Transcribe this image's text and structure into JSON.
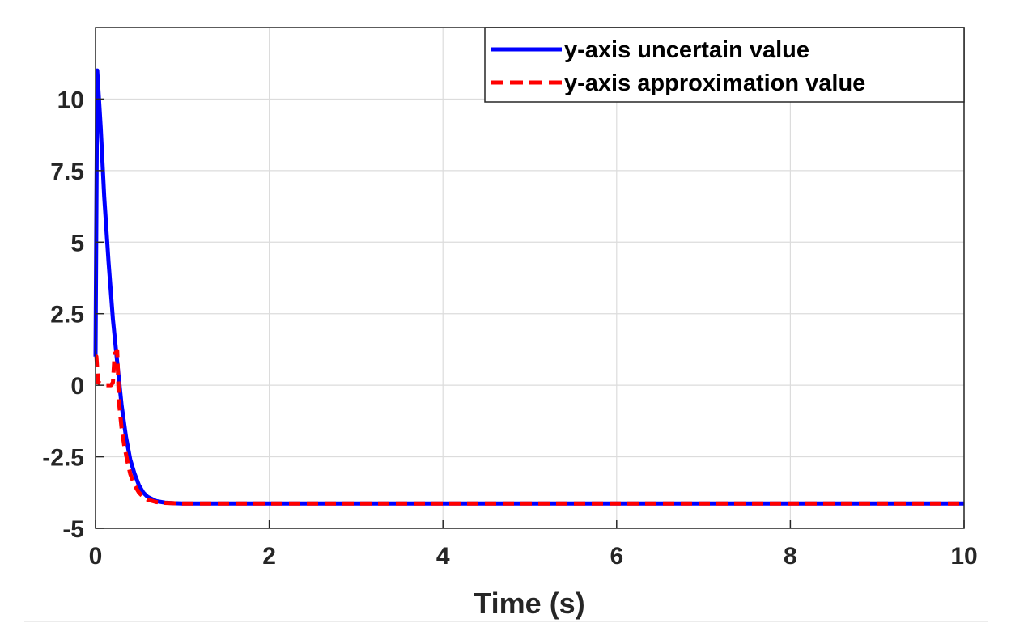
{
  "chart_data": {
    "type": "line",
    "title": "",
    "xlabel": "Time (s)",
    "ylabel": "",
    "xlim": [
      0,
      10
    ],
    "ylim": [
      -5,
      12.5
    ],
    "x_ticks": [
      0,
      2,
      4,
      6,
      8,
      10
    ],
    "x_tick_labels": [
      "0",
      "2",
      "4",
      "6",
      "8",
      "10"
    ],
    "y_ticks": [
      -5,
      -2.5,
      0,
      2.5,
      5,
      7.5,
      10
    ],
    "y_tick_labels": [
      "-5",
      "-2.5",
      "0",
      "2.5",
      "5",
      "7.5",
      "10"
    ],
    "grid": true,
    "legend_position": "top-right",
    "series": [
      {
        "name": "y-axis uncertain value",
        "color": "#0000ff",
        "style": "solid",
        "x": [
          0,
          0.02,
          0.06,
          0.1,
          0.15,
          0.2,
          0.25,
          0.3,
          0.35,
          0.4,
          0.45,
          0.5,
          0.55,
          0.6,
          0.7,
          0.8,
          0.9,
          1.0,
          1.5,
          2,
          3,
          4,
          5,
          6,
          7,
          8,
          9,
          10
        ],
        "y": [
          1.0,
          11.0,
          9.0,
          6.6,
          4.3,
          2.3,
          0.8,
          -0.7,
          -1.8,
          -2.6,
          -3.1,
          -3.5,
          -3.75,
          -3.9,
          -4.05,
          -4.1,
          -4.12,
          -4.13,
          -4.13,
          -4.13,
          -4.13,
          -4.13,
          -4.13,
          -4.13,
          -4.13,
          -4.13,
          -4.13,
          -4.13
        ]
      },
      {
        "name": "y-axis approximation value",
        "color": "#ff0000",
        "style": "dashed",
        "x": [
          0,
          0.01,
          0.03,
          0.1,
          0.18,
          0.2,
          0.22,
          0.25,
          0.27,
          0.3,
          0.33,
          0.37,
          0.4,
          0.45,
          0.5,
          0.55,
          0.6,
          0.7,
          0.8,
          0.9,
          1.0,
          1.5,
          2,
          3,
          4,
          5,
          6,
          7,
          8,
          9,
          10
        ],
        "y": [
          1.0,
          1.0,
          0.1,
          0.0,
          0.0,
          0.1,
          1.1,
          1.2,
          -0.6,
          -1.5,
          -2.1,
          -2.7,
          -3.1,
          -3.5,
          -3.75,
          -3.9,
          -4.0,
          -4.08,
          -4.11,
          -4.12,
          -4.13,
          -4.13,
          -4.13,
          -4.13,
          -4.13,
          -4.13,
          -4.13,
          -4.13,
          -4.13,
          -4.13,
          -4.13
        ]
      }
    ]
  }
}
